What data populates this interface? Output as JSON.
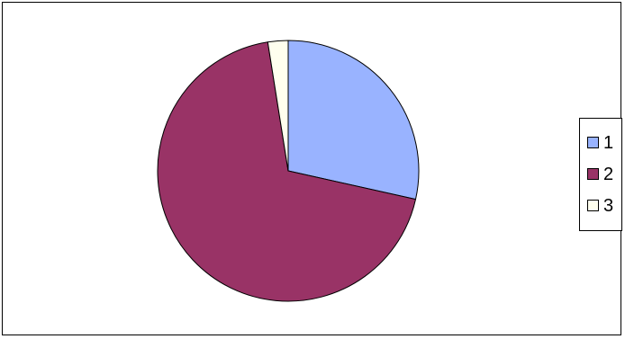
{
  "chart_data": {
    "type": "pie",
    "slices": [
      {
        "label": "1",
        "value": 28.5,
        "color": "#99b3ff"
      },
      {
        "label": "2",
        "value": 69.0,
        "color": "#993366"
      },
      {
        "label": "3",
        "value": 2.5,
        "color": "#ffffee"
      }
    ],
    "start": "12 o'clock",
    "direction": "clockwise",
    "legend": {
      "position": "right",
      "entries": [
        "1",
        "2",
        "3"
      ]
    }
  }
}
